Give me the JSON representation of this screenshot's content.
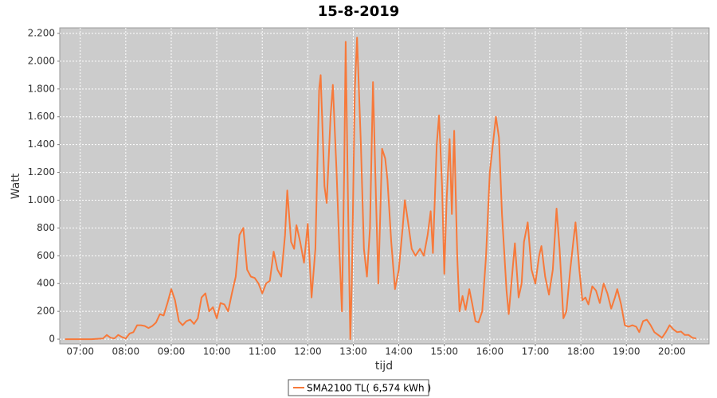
{
  "chart_data": {
    "type": "line",
    "title": "15-8-2019",
    "xlabel": "tijd",
    "ylabel": "Watt",
    "x": [
      "06:40",
      "07:00",
      "07:15",
      "07:30",
      "07:35",
      "07:40",
      "07:45",
      "07:50",
      "07:55",
      "08:00",
      "08:05",
      "08:10",
      "08:15",
      "08:20",
      "08:25",
      "08:30",
      "08:35",
      "08:40",
      "08:45",
      "08:50",
      "08:55",
      "09:00",
      "09:05",
      "09:10",
      "09:15",
      "09:20",
      "09:25",
      "09:30",
      "09:35",
      "09:40",
      "09:45",
      "09:50",
      "09:55",
      "10:00",
      "10:05",
      "10:10",
      "10:15",
      "10:20",
      "10:25",
      "10:30",
      "10:35",
      "10:40",
      "10:45",
      "10:50",
      "10:55",
      "11:00",
      "11:05",
      "11:10",
      "11:15",
      "11:20",
      "11:25",
      "11:30",
      "11:33",
      "11:38",
      "11:42",
      "11:45",
      "11:50",
      "11:55",
      "12:00",
      "12:05",
      "12:10",
      "12:15",
      "12:17",
      "12:22",
      "12:25",
      "12:30",
      "12:33",
      "12:38",
      "12:42",
      "12:45",
      "12:48",
      "12:50",
      "12:53",
      "12:56",
      "12:58",
      "13:02",
      "13:05",
      "13:10",
      "13:14",
      "13:18",
      "13:22",
      "13:26",
      "13:30",
      "13:33",
      "13:38",
      "13:42",
      "13:45",
      "13:50",
      "13:55",
      "14:00",
      "14:05",
      "14:08",
      "14:12",
      "14:17",
      "14:22",
      "14:28",
      "14:33",
      "14:38",
      "14:42",
      "14:45",
      "14:50",
      "14:53",
      "14:57",
      "15:00",
      "15:03",
      "15:07",
      "15:10",
      "15:13",
      "15:17",
      "15:20",
      "15:24",
      "15:28",
      "15:33",
      "15:37",
      "15:41",
      "15:45",
      "15:50",
      "15:55",
      "16:00",
      "16:05",
      "16:08",
      "16:12",
      "16:16",
      "16:22",
      "16:25",
      "16:30",
      "16:33",
      "16:38",
      "16:42",
      "16:45",
      "16:50",
      "16:55",
      "17:00",
      "17:05",
      "17:08",
      "17:13",
      "17:18",
      "17:23",
      "17:28",
      "17:32",
      "17:37",
      "17:41",
      "17:46",
      "17:50",
      "17:53",
      "17:58",
      "18:02",
      "18:06",
      "18:10",
      "18:15",
      "18:20",
      "18:25",
      "18:30",
      "18:35",
      "18:40",
      "18:45",
      "18:48",
      "18:53",
      "18:58",
      "19:03",
      "19:08",
      "19:13",
      "19:17",
      "19:22",
      "19:27",
      "19:32",
      "19:37",
      "19:42",
      "19:47",
      "19:52",
      "19:57",
      "20:02",
      "20:07",
      "20:12",
      "20:17",
      "20:22",
      "20:27",
      "20:32"
    ],
    "series": [
      {
        "name": "SMA2100 TL( 6,574 kWh )",
        "color": "#f7793a",
        "values": [
          0,
          0,
          0,
          5,
          30,
          10,
          5,
          30,
          15,
          5,
          40,
          50,
          100,
          100,
          95,
          80,
          95,
          120,
          180,
          170,
          260,
          360,
          280,
          130,
          100,
          130,
          140,
          110,
          150,
          300,
          330,
          200,
          230,
          150,
          260,
          250,
          200,
          330,
          450,
          750,
          800,
          500,
          450,
          440,
          400,
          330,
          400,
          420,
          630,
          500,
          450,
          750,
          1070,
          700,
          650,
          820,
          700,
          550,
          830,
          300,
          650,
          1800,
          1900,
          1100,
          980,
          1600,
          1830,
          1200,
          600,
          200,
          1200,
          2140,
          1000,
          0,
          400,
          1800,
          2170,
          1400,
          650,
          450,
          800,
          1850,
          1000,
          400,
          1370,
          1300,
          1150,
          700,
          360,
          500,
          800,
          1000,
          850,
          650,
          600,
          650,
          600,
          750,
          920,
          620,
          1400,
          1610,
          1100,
          470,
          1000,
          1440,
          900,
          1500,
          600,
          200,
          310,
          210,
          360,
          250,
          130,
          120,
          200,
          600,
          1200,
          1450,
          1600,
          1450,
          900,
          350,
          180,
          500,
          690,
          300,
          400,
          700,
          840,
          500,
          400,
          600,
          670,
          450,
          320,
          500,
          940,
          650,
          150,
          200,
          500,
          700,
          840,
          500,
          280,
          300,
          250,
          380,
          350,
          260,
          400,
          330,
          220,
          300,
          360,
          250,
          100,
          90,
          100,
          90,
          50,
          130,
          140,
          100,
          50,
          30,
          10,
          50,
          100,
          70,
          50,
          55,
          30,
          30,
          10,
          5
        ]
      }
    ],
    "xlim": [
      "06:33",
      "20:49"
    ],
    "xticks": [
      "07:00",
      "08:00",
      "09:00",
      "10:00",
      "11:00",
      "12:00",
      "13:00",
      "14:00",
      "15:00",
      "16:00",
      "17:00",
      "18:00",
      "19:00",
      "20:00"
    ],
    "ylim": [
      -34,
      2240
    ],
    "yticks": [
      0,
      200,
      400,
      600,
      800,
      {
        "value": 1000,
        "label": "1.000"
      },
      {
        "value": 1200,
        "label": "1.200"
      },
      {
        "value": 1400,
        "label": "1.400"
      },
      {
        "value": 1600,
        "label": "1.600"
      },
      {
        "value": 1800,
        "label": "1.800"
      },
      {
        "value": 2000,
        "label": "2.000"
      },
      {
        "value": 2200,
        "label": "2.200"
      }
    ],
    "grid": true,
    "legend": "bottom"
  }
}
